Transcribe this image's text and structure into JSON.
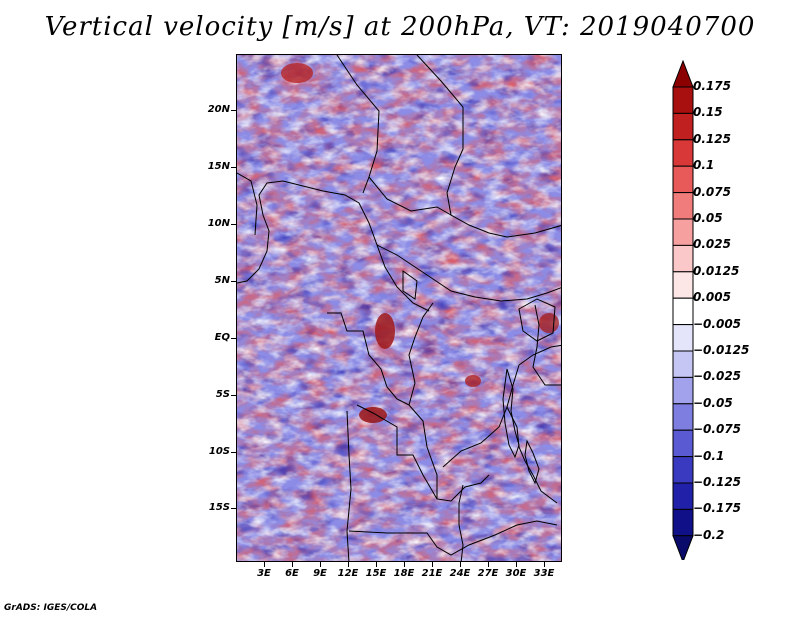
{
  "title": "Vertical velocity [m/s] at 200hPa, VT: 2019040700",
  "footer": "GrADS: IGES/COLA",
  "map": {
    "variable": "Vertical velocity",
    "units": "m/s",
    "level": "200hPa",
    "valid_time": "2019040700",
    "lat_labels": [
      "20N",
      "15N",
      "10N",
      "5N",
      "EQ",
      "5S",
      "10S",
      "15S"
    ],
    "lat_values": [
      20,
      15,
      10,
      5,
      0,
      -5,
      -10,
      -15
    ],
    "lon_labels": [
      "3E",
      "6E",
      "9E",
      "12E",
      "15E",
      "18E",
      "21E",
      "24E",
      "27E",
      "30E",
      "33E"
    ],
    "lon_values": [
      3,
      6,
      9,
      12,
      15,
      18,
      21,
      24,
      27,
      30,
      33
    ]
  },
  "colorbar": {
    "labels": [
      "0.175",
      "0.15",
      "0.125",
      "0.1",
      "0.075",
      "0.05",
      "0.025",
      "0.0125",
      "0.005",
      "−0.005",
      "−0.0125",
      "−0.025",
      "−0.05",
      "−0.075",
      "−0.1",
      "−0.125",
      "−0.175",
      "−0.2"
    ],
    "colors": [
      "#8b0000",
      "#a81010",
      "#c02020",
      "#d83838",
      "#e85a5a",
      "#f07c7c",
      "#f6a0a0",
      "#fac8c8",
      "#fde6e6",
      "#ffffff",
      "#e4e4fb",
      "#c6c6f4",
      "#a2a2ec",
      "#7e7ee0",
      "#5a5ad2",
      "#3a3ac0",
      "#2020a8",
      "#101088",
      "#0a0a6a"
    ]
  },
  "colors": {
    "positive": "#d23c3c",
    "negative": "#4848d0",
    "neutral": "#ffffff",
    "boundary": "#000000"
  }
}
